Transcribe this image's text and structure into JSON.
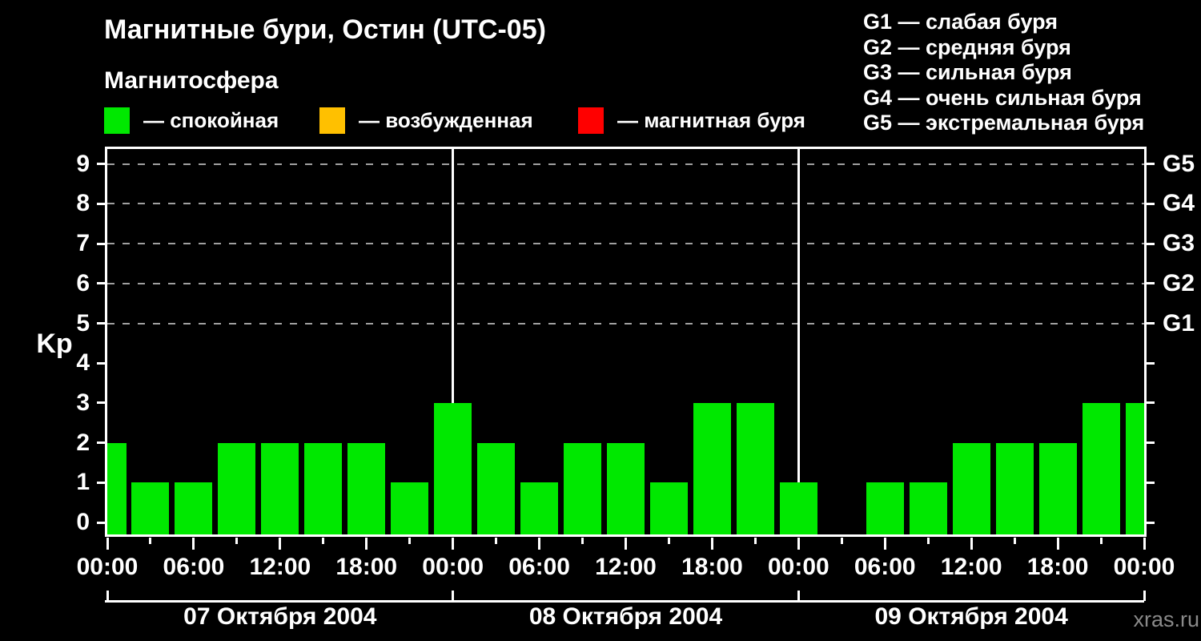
{
  "header": {
    "title": "Магнитные бури, Остин (UTC-05)",
    "subtitle": "Магнитосфера",
    "legend": [
      {
        "label": "— спокойная",
        "color": "#00E800"
      },
      {
        "label": "— возбужденная",
        "color": "#FFC000"
      },
      {
        "label": "— магнитная буря",
        "color": "#FF0000"
      }
    ],
    "storm_scale": [
      "G1 — слабая буря",
      "G2 — средняя буря",
      "G3 — сильная буря",
      "G4 — очень сильная буря",
      "G5 — экстремальная буря"
    ]
  },
  "watermark": "xras.ru",
  "chart_data": {
    "type": "bar",
    "title": "Магнитные бури, Остин (UTC-05)",
    "ylabel": "Kp",
    "ylim": [
      0,
      9
    ],
    "y_ticks": [
      0,
      1,
      2,
      3,
      4,
      5,
      6,
      7,
      8,
      9
    ],
    "grid_kp_levels": [
      5,
      6,
      7,
      8,
      9
    ],
    "grid_color": "#A0A0A0",
    "bar_color": "#00E800",
    "x_interval_hours": 3,
    "x_major_tick_labels": [
      "00:00",
      "06:00",
      "12:00",
      "18:00",
      "00:00",
      "06:00",
      "12:00",
      "18:00",
      "00:00",
      "06:00",
      "12:00",
      "18:00",
      "00:00"
    ],
    "days": [
      "07 Октября 2004",
      "08 Октября 2004",
      "09 Октября 2004"
    ],
    "right_axis": [
      {
        "kp": 5,
        "label": "G1"
      },
      {
        "kp": 6,
        "label": "G2"
      },
      {
        "kp": 7,
        "label": "G3"
      },
      {
        "kp": 8,
        "label": "G4"
      },
      {
        "kp": 9,
        "label": "G5"
      }
    ],
    "series": [
      {
        "name": "Kp",
        "x_times": [
          "07 00:00",
          "07 03:00",
          "07 06:00",
          "07 09:00",
          "07 12:00",
          "07 15:00",
          "07 18:00",
          "07 21:00",
          "08 00:00",
          "08 03:00",
          "08 06:00",
          "08 09:00",
          "08 12:00",
          "08 15:00",
          "08 18:00",
          "08 21:00",
          "09 00:00",
          "09 03:00",
          "09 06:00",
          "09 09:00",
          "09 12:00",
          "09 15:00",
          "09 18:00",
          "09 21:00",
          "10 00:00"
        ],
        "values": [
          2,
          1,
          1,
          2,
          2,
          2,
          2,
          1,
          3,
          2,
          1,
          2,
          2,
          1,
          3,
          3,
          1,
          null,
          1,
          1,
          2,
          2,
          2,
          3,
          3
        ]
      }
    ]
  }
}
